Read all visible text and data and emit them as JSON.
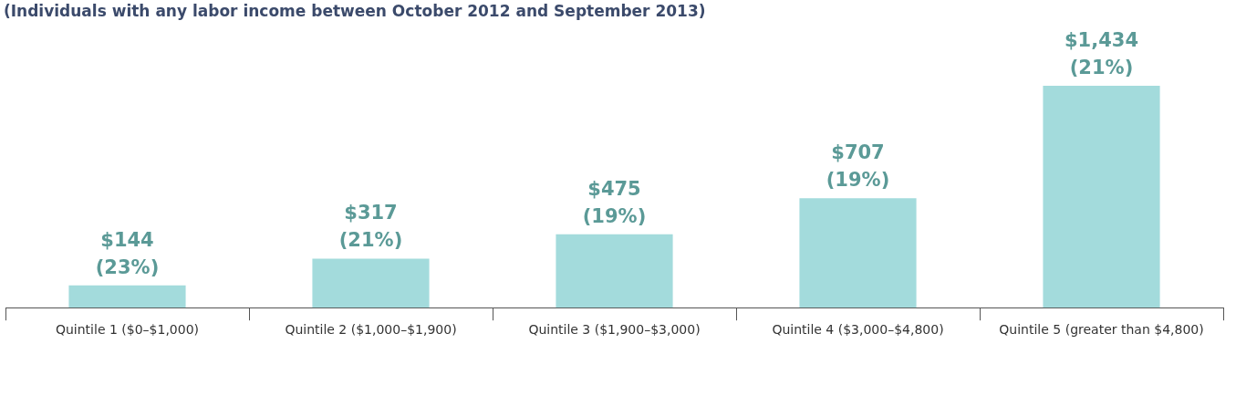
{
  "chart_data": {
    "type": "bar",
    "subtitle": "(Individuals with any labor income between October 2012 and September 2013)",
    "categories": [
      "Quintile 1 ($0–$1,000)",
      "Quintile 2 ($1,000–$1,900)",
      "Quintile 3 ($1,900–$3,000)",
      "Quintile 4 ($3,000–$4,800)",
      "Quintile 5 (greater than $4,800)"
    ],
    "values": [
      144,
      317,
      475,
      707,
      1434
    ],
    "value_labels": [
      "$144\n(23%)",
      "$317\n(21%)",
      "$475\n(19%)",
      "$707\n(19%)",
      "$1,434\n(21%)"
    ],
    "color": "#a3dbdc",
    "grid": false,
    "legend": false
  }
}
